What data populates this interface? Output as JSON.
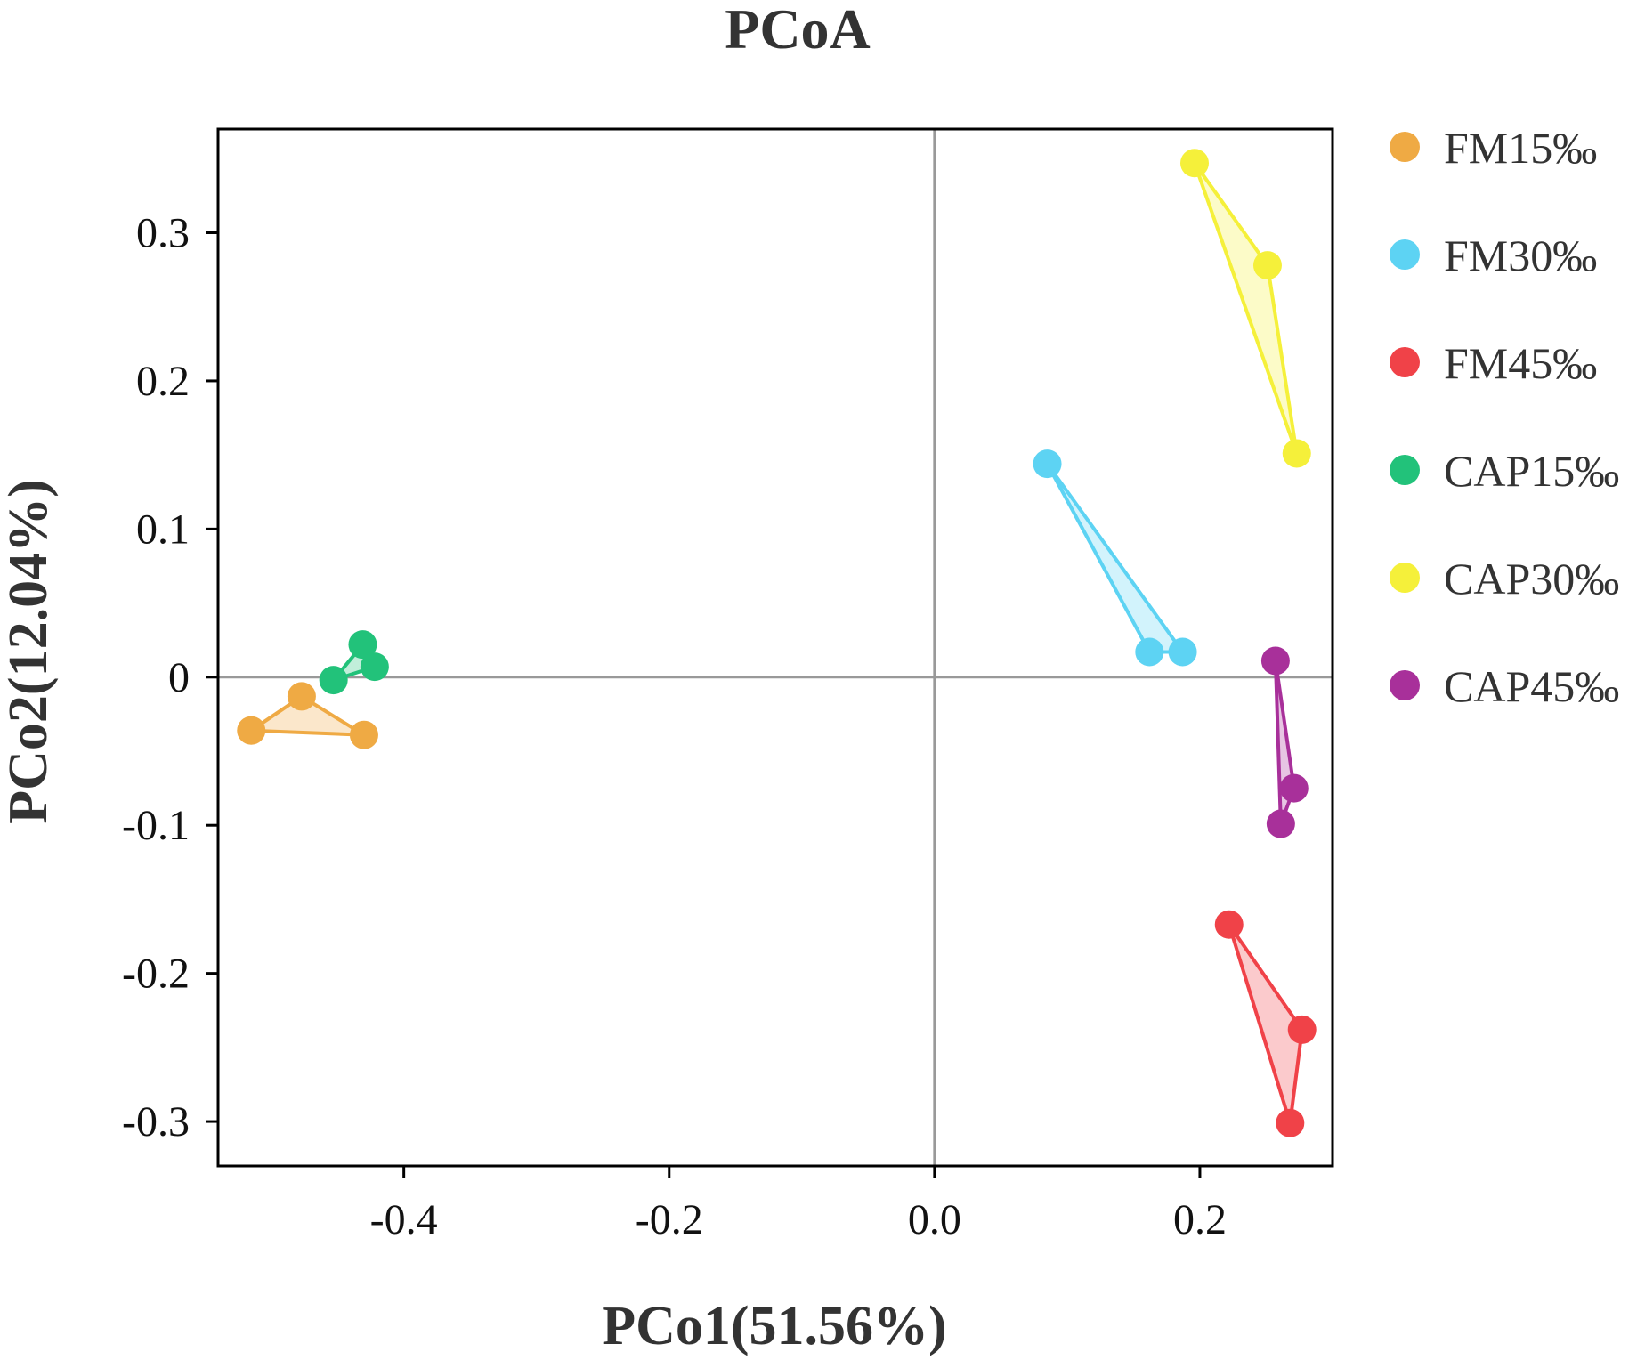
{
  "chart_data": {
    "type": "scatter",
    "title": "PCoA",
    "xlabel": "PCo1(51.56%)",
    "ylabel": "PCo2(12.04%)",
    "xlim": [
      -0.54,
      0.3
    ],
    "ylim": [
      -0.33,
      0.37
    ],
    "xticks": [
      -0.4,
      -0.2,
      0.0,
      0.2
    ],
    "xtick_labels": [
      "-0.4",
      "-0.2",
      "0.0",
      "0.2"
    ],
    "yticks": [
      -0.3,
      -0.2,
      -0.1,
      0,
      0.1,
      0.2,
      0.3
    ],
    "ytick_labels": [
      "-0.3",
      "-0.2",
      "-0.1",
      "0",
      "0.1",
      "0.2",
      "0.3"
    ],
    "reference_lines": {
      "x": 0,
      "y": 0
    },
    "legend_position": "right",
    "series": [
      {
        "name": "FM15‰",
        "color": "#EFAA44",
        "points": [
          [
            -0.515,
            -0.036
          ],
          [
            -0.477,
            -0.013
          ],
          [
            -0.43,
            -0.039
          ]
        ]
      },
      {
        "name": "FM30‰",
        "color": "#5DD3F3",
        "points": [
          [
            0.085,
            0.144
          ],
          [
            0.162,
            0.017
          ],
          [
            0.187,
            0.017
          ]
        ]
      },
      {
        "name": "FM45‰",
        "color": "#F04248",
        "points": [
          [
            0.222,
            -0.167
          ],
          [
            0.277,
            -0.238
          ],
          [
            0.268,
            -0.301
          ]
        ]
      },
      {
        "name": "CAP15‰",
        "color": "#22C27A",
        "points": [
          [
            -0.453,
            -0.002
          ],
          [
            -0.431,
            0.022
          ],
          [
            -0.422,
            0.007
          ]
        ]
      },
      {
        "name": "CAP30‰",
        "color": "#F5F03A",
        "points": [
          [
            0.196,
            0.347
          ],
          [
            0.251,
            0.278
          ],
          [
            0.273,
            0.151
          ]
        ]
      },
      {
        "name": "CAP45‰",
        "color": "#A8309A",
        "points": [
          [
            0.257,
            0.011
          ],
          [
            0.271,
            -0.075
          ],
          [
            0.261,
            -0.099
          ]
        ]
      }
    ]
  }
}
